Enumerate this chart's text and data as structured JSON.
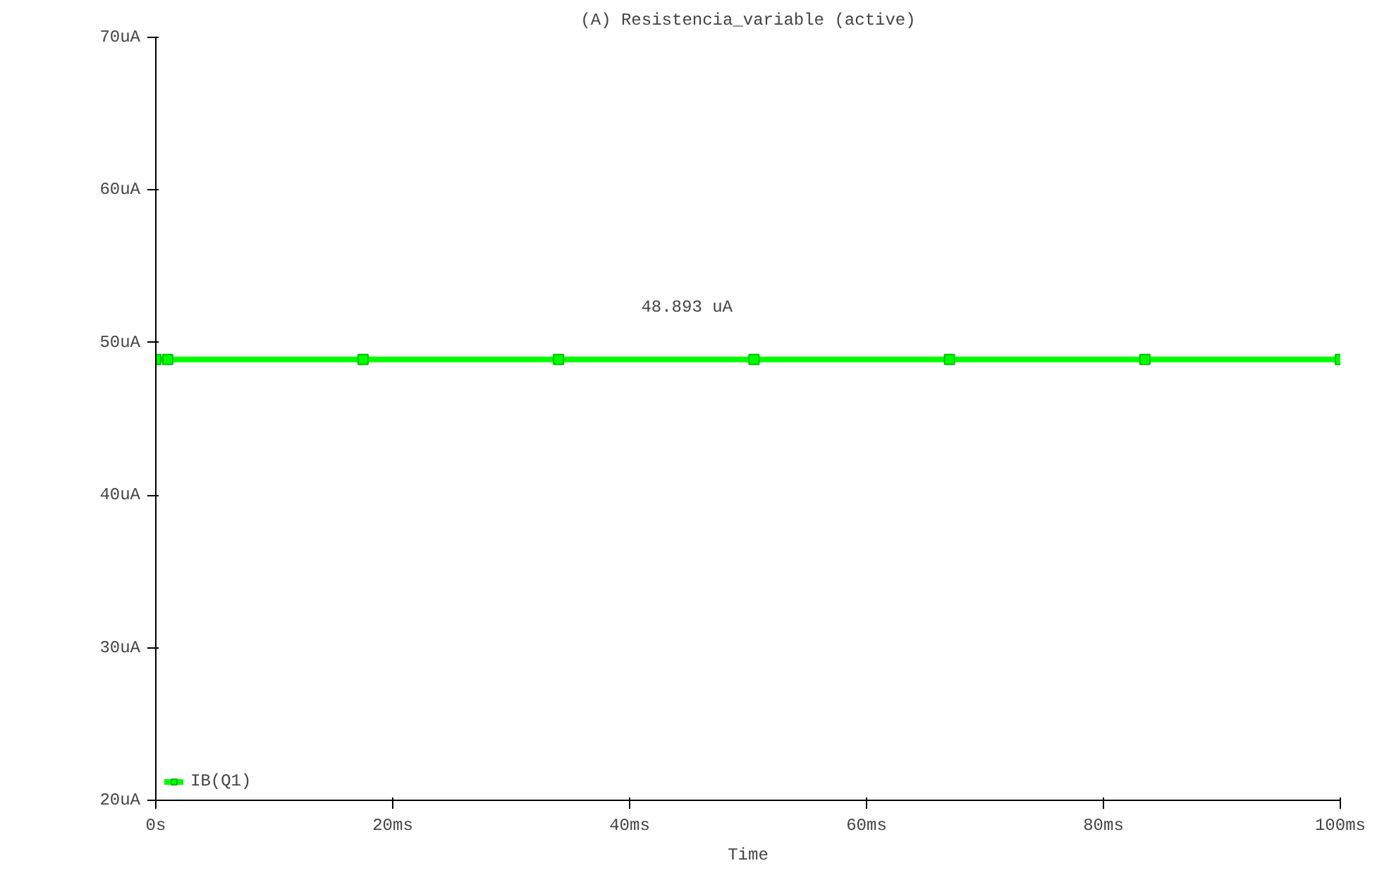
{
  "chart_data": {
    "type": "line",
    "title": "(A) Resistencia_variable (active)",
    "xlabel": "Time",
    "x": [
      0,
      1,
      17.5,
      34,
      50.5,
      67,
      83.5,
      100
    ],
    "series": [
      {
        "name": "IB(Q1)",
        "color": "#00ff00",
        "values": [
          48.893,
          48.893,
          48.893,
          48.893,
          48.893,
          48.893,
          48.893,
          48.893
        ]
      }
    ],
    "annotations": [
      {
        "text": "48.893 uA",
        "x": 50.5,
        "y": 48.893
      }
    ],
    "xlim": [
      0,
      100
    ],
    "ylim": [
      20,
      70
    ],
    "xticks": [
      {
        "value": 0,
        "label": "0s"
      },
      {
        "value": 20,
        "label": "20ms"
      },
      {
        "value": 40,
        "label": "40ms"
      },
      {
        "value": 60,
        "label": "60ms"
      },
      {
        "value": 80,
        "label": "80ms"
      },
      {
        "value": 100,
        "label": "100ms"
      }
    ],
    "yticks": [
      {
        "value": 20,
        "label": "20uA"
      },
      {
        "value": 30,
        "label": "30uA"
      },
      {
        "value": 40,
        "label": "40uA"
      },
      {
        "value": 50,
        "label": "50uA"
      },
      {
        "value": 60,
        "label": "60uA"
      },
      {
        "value": 70,
        "label": "70uA"
      }
    ],
    "grid": false,
    "legend": "bottom left",
    "marker": "square",
    "line_style": "solid"
  }
}
